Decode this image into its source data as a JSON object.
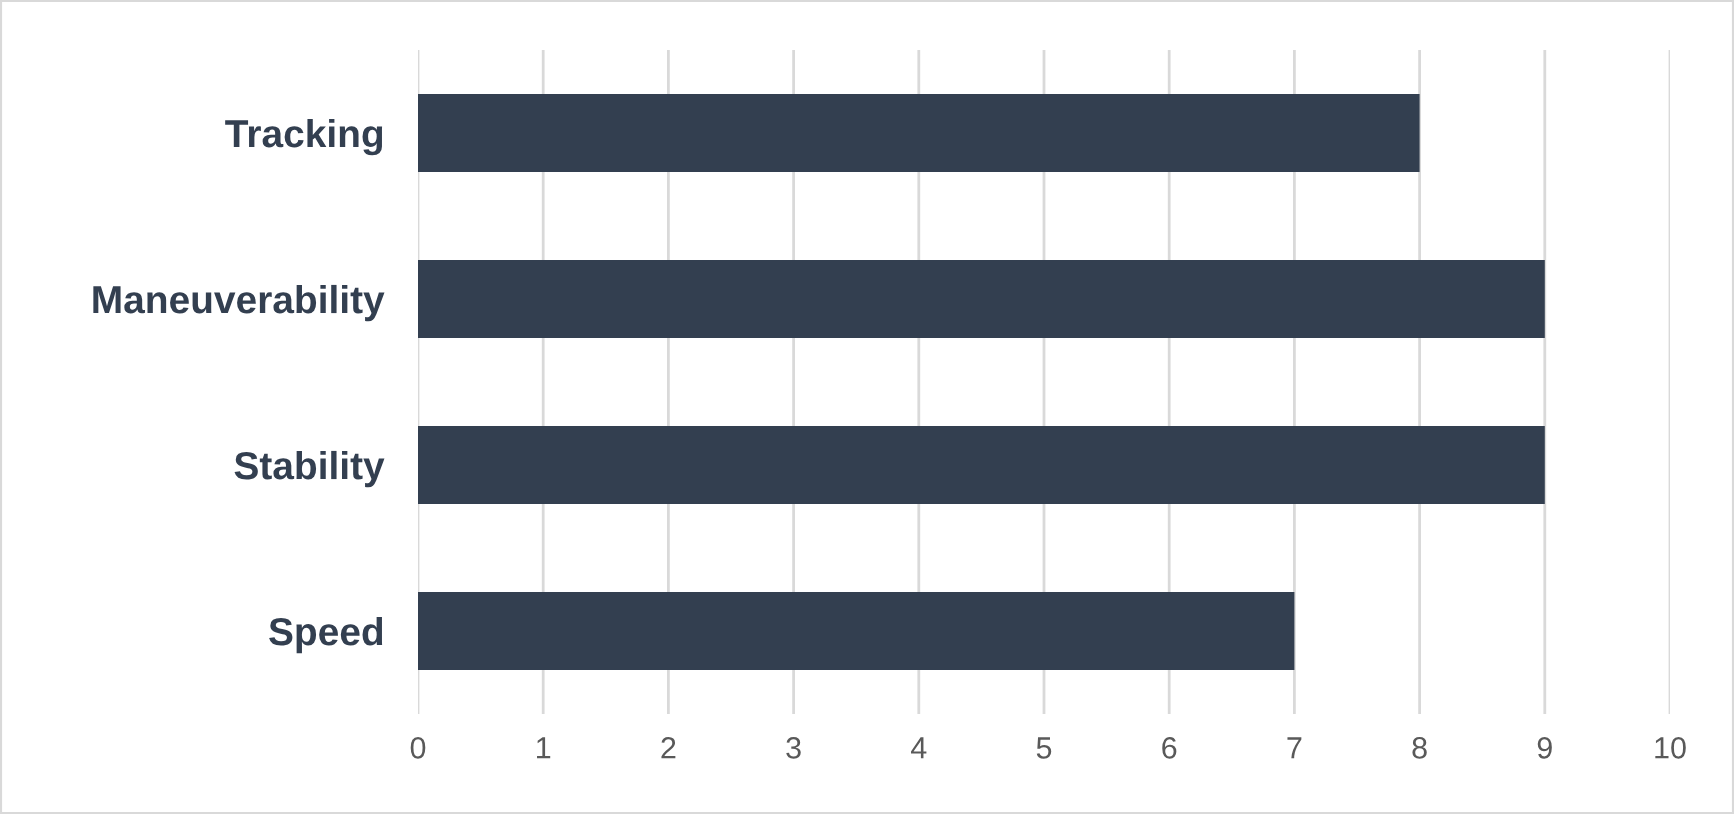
{
  "chart_data": {
    "type": "bar",
    "orientation": "horizontal",
    "categories": [
      "Tracking",
      "Maneuverability",
      "Stability",
      "Speed"
    ],
    "values": [
      8,
      9,
      9,
      7
    ],
    "color": "#333f50",
    "xlim": [
      0,
      10
    ],
    "xticks": [
      0,
      1,
      2,
      3,
      4,
      5,
      6,
      7,
      8,
      9,
      10
    ],
    "grid": "x"
  }
}
